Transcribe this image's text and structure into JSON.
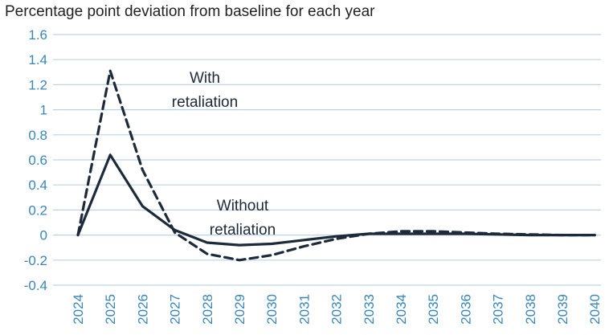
{
  "chart_data": {
    "type": "line",
    "title": "Percentage point deviation from baseline for each year",
    "x": [
      "2024",
      "2025",
      "2026",
      "2027",
      "2028",
      "2029",
      "2030",
      "2031",
      "2032",
      "2033",
      "2034",
      "2035",
      "2036",
      "2037",
      "2038",
      "2039",
      "2040"
    ],
    "ylim": [
      -0.4,
      1.6
    ],
    "yticks": [
      "1.6",
      "1.4",
      "1.2",
      "1",
      "0.8",
      "0.6",
      "0.4",
      "0.2",
      "0",
      "-0.2",
      "-0.4"
    ],
    "grid": true,
    "series": [
      {
        "name": "With retaliation",
        "style": "dashed",
        "color": "#1c2a3a",
        "values": [
          0,
          1.31,
          0.52,
          0.02,
          -0.15,
          -0.2,
          -0.16,
          -0.09,
          -0.03,
          0.01,
          0.03,
          0.03,
          0.02,
          0.01,
          0.005,
          0.0,
          0.0
        ]
      },
      {
        "name": "Without retaliation",
        "style": "solid",
        "color": "#1c2a3a",
        "values": [
          0,
          0.64,
          0.23,
          0.04,
          -0.06,
          -0.08,
          -0.07,
          -0.04,
          -0.01,
          0.01,
          0.01,
          0.01,
          0.01,
          0.005,
          0.0,
          0.0,
          0.0
        ]
      }
    ],
    "annotations": [
      {
        "lines": [
          "With",
          "retaliation"
        ],
        "series": "With retaliation"
      },
      {
        "lines": [
          "Without",
          "retaliation"
        ],
        "series": "Without retaliation"
      }
    ],
    "colors": {
      "gridline": "#bcd3e6",
      "tick_text": "#3a86b8",
      "line": "#1c2a3a"
    }
  }
}
